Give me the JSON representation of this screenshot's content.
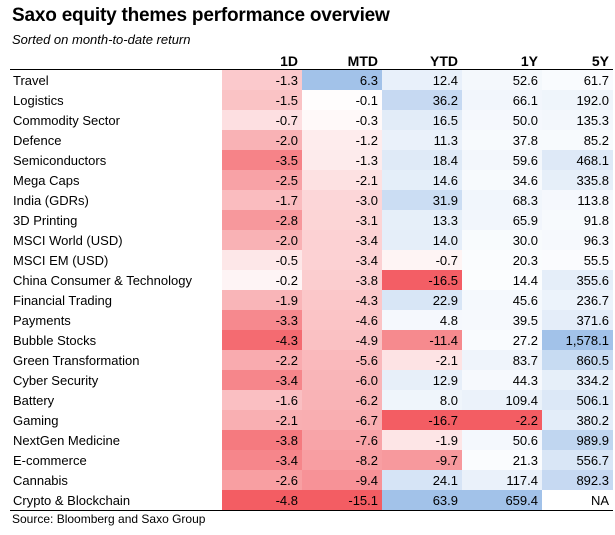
{
  "title": "Saxo equity themes performance overview",
  "subtitle": "Sorted on month-to-date return",
  "source": "Source: Bloomberg and Saxo Group",
  "columns": [
    "",
    "1D",
    "MTD",
    "YTD",
    "1Y",
    "5Y"
  ],
  "colors": {
    "negative": "#f2545b",
    "positive": "#7aa8e0",
    "white": "#ffffff"
  },
  "rows": [
    {
      "name": "Travel",
      "values": [
        "-1.3",
        "6.3",
        "12.4",
        "52.6",
        "61.7"
      ]
    },
    {
      "name": "Logistics",
      "values": [
        "-1.5",
        "-0.1",
        "36.2",
        "66.1",
        "192.0"
      ]
    },
    {
      "name": "Commodity Sector",
      "values": [
        "-0.7",
        "-0.3",
        "16.5",
        "50.0",
        "135.3"
      ]
    },
    {
      "name": "Defence",
      "values": [
        "-2.0",
        "-1.2",
        "11.3",
        "37.8",
        "85.2"
      ]
    },
    {
      "name": "Semiconductors",
      "values": [
        "-3.5",
        "-1.3",
        "18.4",
        "59.6",
        "468.1"
      ]
    },
    {
      "name": "Mega Caps",
      "values": [
        "-2.5",
        "-2.1",
        "14.6",
        "34.6",
        "335.8"
      ]
    },
    {
      "name": "India (GDRs)",
      "values": [
        "-1.7",
        "-3.0",
        "31.9",
        "68.3",
        "113.8"
      ]
    },
    {
      "name": "3D Printing",
      "values": [
        "-2.8",
        "-3.1",
        "13.3",
        "65.9",
        "91.8"
      ]
    },
    {
      "name": "MSCI World (USD)",
      "values": [
        "-2.0",
        "-3.4",
        "14.0",
        "30.0",
        "96.3"
      ]
    },
    {
      "name": "MSCI EM (USD)",
      "values": [
        "-0.5",
        "-3.4",
        "-0.7",
        "20.3",
        "55.5"
      ]
    },
    {
      "name": "China Consumer & Technology",
      "values": [
        "-0.2",
        "-3.8",
        "-16.5",
        "14.4",
        "355.6"
      ]
    },
    {
      "name": "Financial Trading",
      "values": [
        "-1.9",
        "-4.3",
        "22.9",
        "45.6",
        "236.7"
      ]
    },
    {
      "name": "Payments",
      "values": [
        "-3.3",
        "-4.6",
        "4.8",
        "39.5",
        "371.6"
      ]
    },
    {
      "name": "Bubble Stocks",
      "values": [
        "-4.3",
        "-4.9",
        "-11.4",
        "27.2",
        "1,578.1"
      ]
    },
    {
      "name": "Green Transformation",
      "values": [
        "-2.2",
        "-5.6",
        "-2.1",
        "83.7",
        "860.5"
      ]
    },
    {
      "name": "Cyber Security",
      "values": [
        "-3.4",
        "-6.0",
        "12.9",
        "44.3",
        "334.2"
      ]
    },
    {
      "name": "Battery",
      "values": [
        "-1.6",
        "-6.2",
        "8.0",
        "109.4",
        "506.1"
      ]
    },
    {
      "name": "Gaming",
      "values": [
        "-2.1",
        "-6.7",
        "-16.7",
        "-2.2",
        "380.2"
      ]
    },
    {
      "name": "NextGen Medicine",
      "values": [
        "-3.8",
        "-7.6",
        "-1.9",
        "50.6",
        "989.9"
      ]
    },
    {
      "name": "E-commerce",
      "values": [
        "-3.4",
        "-8.2",
        "-9.7",
        "21.3",
        "556.7"
      ]
    },
    {
      "name": "Cannabis",
      "values": [
        "-2.6",
        "-9.4",
        "24.1",
        "117.4",
        "892.3"
      ]
    },
    {
      "name": "Crypto & Blockchain",
      "values": [
        "-4.8",
        "-15.1",
        "63.9",
        "659.4",
        "NA"
      ]
    }
  ]
}
